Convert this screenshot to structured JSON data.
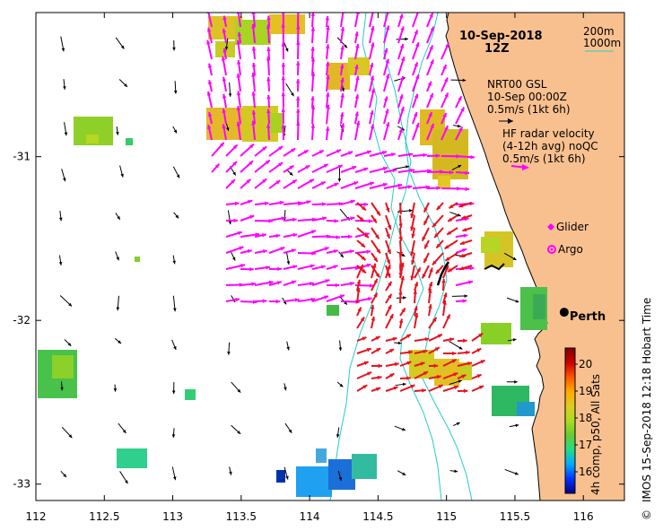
{
  "map": {
    "date": "10-Sep-2018",
    "hour": "12Z",
    "isobath_labels": [
      "200m",
      "1000m"
    ],
    "coast_color": "#f9c08f",
    "isobath_color": "#22cccc",
    "x_ticks": [
      {
        "label": "112",
        "lon": 112
      },
      {
        "label": "112.5",
        "lon": 112.5
      },
      {
        "label": "113",
        "lon": 113
      },
      {
        "label": "113.5",
        "lon": 113.5
      },
      {
        "label": "114",
        "lon": 114
      },
      {
        "label": "114.5",
        "lon": 114.5
      },
      {
        "label": "115",
        "lon": 115
      },
      {
        "label": "115.5",
        "lon": 115.5
      },
      {
        "label": "116",
        "lon": 116
      }
    ],
    "y_ticks": [
      {
        "label": "-31",
        "lat": -31
      },
      {
        "label": "-32",
        "lat": -32
      },
      {
        "label": "-33",
        "lat": -33
      }
    ],
    "lon_range": [
      112,
      116.3
    ],
    "lat_range": [
      -33.1,
      -30.12
    ]
  },
  "legend": {
    "model_lines": [
      "NRT00 GSL",
      "10-Sep 00:00Z",
      "0.5m/s (1kt 6h)"
    ],
    "radar_lines": [
      "HF radar velocity",
      "(4-12h avg) noQC",
      "0.5m/s (1kt 6h)"
    ],
    "glider_label": "Glider",
    "argo_label": "Argo",
    "model_arrow_color": "#000000",
    "radar_arrow_color": "#ff00ff",
    "glider_color": "#ff00ff",
    "argo_color": "#ff00ff"
  },
  "city": {
    "name": "Perth",
    "lon": 115.86,
    "lat": -31.95
  },
  "colorbar": {
    "title": "4h comp, p50, All Sats",
    "ticks": [
      "16",
      "17",
      "18",
      "19",
      "20"
    ],
    "tick_values": [
      16,
      17,
      18,
      19,
      20
    ],
    "range": [
      15.2,
      20.6
    ],
    "colors": [
      "#000080",
      "#0033ff",
      "#00aaff",
      "#22dd88",
      "#66cc33",
      "#aadd22",
      "#ddcc22",
      "#ffaa00",
      "#ff5500",
      "#cc0000",
      "#800000"
    ]
  },
  "credit": "IMOS 15-Sep-2018 12:18 Hobart Time",
  "copyright": "©"
}
